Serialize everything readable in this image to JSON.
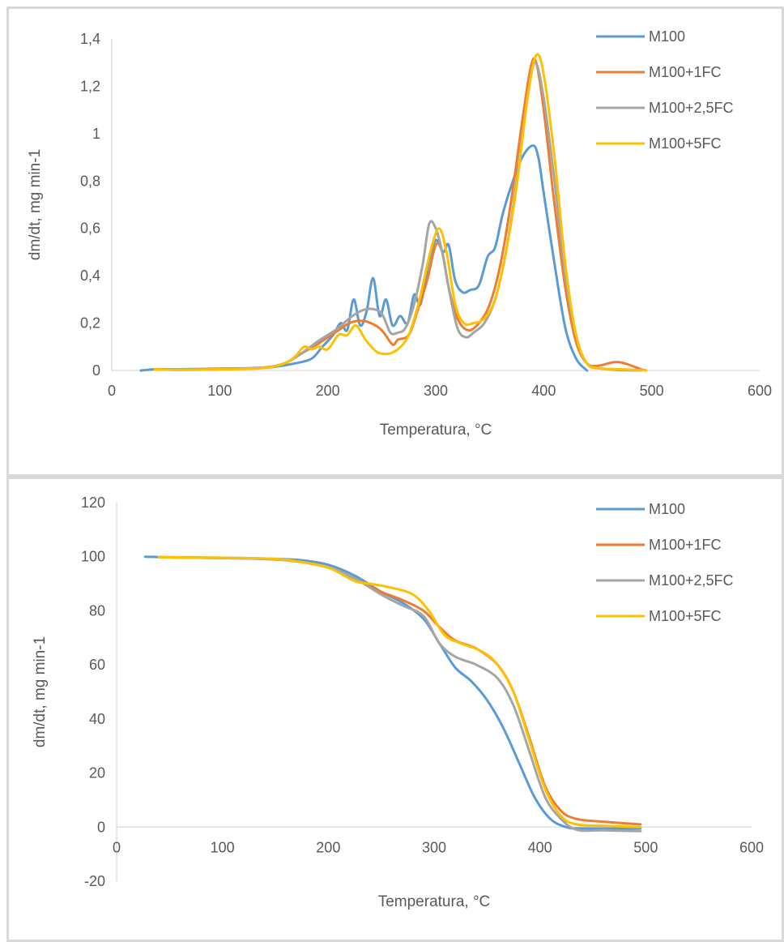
{
  "chart_data": [
    {
      "type": "line",
      "xlabel": "Temperatura, °C",
      "ylabel": "dm/dt, mg min-1",
      "xlim": [
        0,
        600
      ],
      "ylim": [
        0,
        1.4
      ],
      "xticks": [
        "0",
        "100",
        "200",
        "300",
        "400",
        "500",
        "600"
      ],
      "yticks": [
        "0",
        "0,2",
        "0,4",
        "0,6",
        "0,8",
        "1",
        "1,2",
        "1,4"
      ],
      "grid": false,
      "legend_position": "top-right",
      "series": [
        {
          "name": "M100",
          "color": "#5b9bd5",
          "points": [
            [
              27,
              0
            ],
            [
              40,
              0.005
            ],
            [
              60,
              0.005
            ],
            [
              100,
              0.008
            ],
            [
              130,
              0.01
            ],
            [
              150,
              0.015
            ],
            [
              170,
              0.03
            ],
            [
              185,
              0.05
            ],
            [
              195,
              0.1
            ],
            [
              205,
              0.15
            ],
            [
              212,
              0.2
            ],
            [
              218,
              0.17
            ],
            [
              224,
              0.3
            ],
            [
              230,
              0.19
            ],
            [
              236,
              0.25
            ],
            [
              242,
              0.39
            ],
            [
              248,
              0.23
            ],
            [
              254,
              0.3
            ],
            [
              260,
              0.19
            ],
            [
              267,
              0.23
            ],
            [
              274,
              0.2
            ],
            [
              280,
              0.32
            ],
            [
              286,
              0.28
            ],
            [
              293,
              0.45
            ],
            [
              300,
              0.55
            ],
            [
              307,
              0.5
            ],
            [
              312,
              0.53
            ],
            [
              318,
              0.38
            ],
            [
              325,
              0.33
            ],
            [
              332,
              0.34
            ],
            [
              340,
              0.36
            ],
            [
              348,
              0.48
            ],
            [
              355,
              0.52
            ],
            [
              362,
              0.66
            ],
            [
              370,
              0.78
            ],
            [
              380,
              0.9
            ],
            [
              390,
              0.95
            ],
            [
              395,
              0.9
            ],
            [
              400,
              0.75
            ],
            [
              410,
              0.45
            ],
            [
              420,
              0.18
            ],
            [
              430,
              0.05
            ],
            [
              440,
              0
            ]
          ]
        },
        {
          "name": "M100+1FC",
          "color": "#ed7d31",
          "points": [
            [
              40,
              0.005
            ],
            [
              60,
              0.003
            ],
            [
              100,
              0.005
            ],
            [
              140,
              0.012
            ],
            [
              160,
              0.03
            ],
            [
              175,
              0.07
            ],
            [
              190,
              0.11
            ],
            [
              200,
              0.14
            ],
            [
              210,
              0.17
            ],
            [
              220,
              0.2
            ],
            [
              230,
              0.21
            ],
            [
              240,
              0.2
            ],
            [
              250,
              0.17
            ],
            [
              260,
              0.11
            ],
            [
              265,
              0.13
            ],
            [
              275,
              0.15
            ],
            [
              283,
              0.25
            ],
            [
              292,
              0.38
            ],
            [
              300,
              0.53
            ],
            [
              306,
              0.5
            ],
            [
              312,
              0.35
            ],
            [
              320,
              0.22
            ],
            [
              330,
              0.17
            ],
            [
              340,
              0.2
            ],
            [
              350,
              0.28
            ],
            [
              360,
              0.45
            ],
            [
              370,
              0.72
            ],
            [
              380,
              1.05
            ],
            [
              388,
              1.28
            ],
            [
              393,
              1.3
            ],
            [
              400,
              1.1
            ],
            [
              410,
              0.7
            ],
            [
              420,
              0.35
            ],
            [
              430,
              0.12
            ],
            [
              440,
              0.03
            ],
            [
              450,
              0.02
            ],
            [
              465,
              0.035
            ],
            [
              475,
              0.03
            ],
            [
              490,
              0.005
            ],
            [
              495,
              0
            ]
          ]
        },
        {
          "name": "M100+2,5FC",
          "color": "#a5a5a5",
          "points": [
            [
              40,
              0.005
            ],
            [
              60,
              0.003
            ],
            [
              100,
              0.005
            ],
            [
              140,
              0.012
            ],
            [
              160,
              0.03
            ],
            [
              175,
              0.07
            ],
            [
              190,
              0.12
            ],
            [
              200,
              0.15
            ],
            [
              210,
              0.18
            ],
            [
              220,
              0.22
            ],
            [
              230,
              0.25
            ],
            [
              240,
              0.26
            ],
            [
              250,
              0.24
            ],
            [
              258,
              0.16
            ],
            [
              265,
              0.16
            ],
            [
              272,
              0.18
            ],
            [
              280,
              0.28
            ],
            [
              288,
              0.45
            ],
            [
              294,
              0.62
            ],
            [
              300,
              0.6
            ],
            [
              306,
              0.5
            ],
            [
              312,
              0.35
            ],
            [
              320,
              0.18
            ],
            [
              328,
              0.14
            ],
            [
              335,
              0.16
            ],
            [
              345,
              0.2
            ],
            [
              355,
              0.3
            ],
            [
              365,
              0.5
            ],
            [
              375,
              0.8
            ],
            [
              385,
              1.15
            ],
            [
              392,
              1.3
            ],
            [
              400,
              1.15
            ],
            [
              410,
              0.8
            ],
            [
              420,
              0.4
            ],
            [
              430,
              0.15
            ],
            [
              440,
              0.03
            ],
            [
              460,
              0.005
            ],
            [
              490,
              0
            ]
          ]
        },
        {
          "name": "M100+5FC",
          "color": "#ffc000",
          "points": [
            [
              40,
              0.005
            ],
            [
              60,
              0.003
            ],
            [
              100,
              0.005
            ],
            [
              140,
              0.01
            ],
            [
              160,
              0.03
            ],
            [
              170,
              0.06
            ],
            [
              178,
              0.1
            ],
            [
              185,
              0.09
            ],
            [
              192,
              0.1
            ],
            [
              200,
              0.09
            ],
            [
              210,
              0.15
            ],
            [
              218,
              0.15
            ],
            [
              226,
              0.19
            ],
            [
              235,
              0.13
            ],
            [
              245,
              0.08
            ],
            [
              255,
              0.07
            ],
            [
              265,
              0.09
            ],
            [
              275,
              0.15
            ],
            [
              285,
              0.3
            ],
            [
              295,
              0.5
            ],
            [
              303,
              0.6
            ],
            [
              310,
              0.5
            ],
            [
              318,
              0.28
            ],
            [
              326,
              0.2
            ],
            [
              335,
              0.2
            ],
            [
              345,
              0.22
            ],
            [
              355,
              0.3
            ],
            [
              365,
              0.5
            ],
            [
              375,
              0.78
            ],
            [
              385,
              1.15
            ],
            [
              393,
              1.33
            ],
            [
              400,
              1.25
            ],
            [
              410,
              0.9
            ],
            [
              420,
              0.45
            ],
            [
              430,
              0.15
            ],
            [
              440,
              0.03
            ],
            [
              450,
              0.01
            ],
            [
              470,
              0.005
            ],
            [
              495,
              0
            ]
          ]
        }
      ]
    },
    {
      "type": "line",
      "xlabel": "Temperatura, °C",
      "ylabel": "dm/dt, mg min-1",
      "xlim": [
        0,
        600
      ],
      "ylim": [
        -20,
        120
      ],
      "xticks": [
        "0",
        "100",
        "200",
        "300",
        "400",
        "500",
        "600"
      ],
      "yticks": [
        "-20",
        "0",
        "20",
        "40",
        "60",
        "80",
        "100",
        "120"
      ],
      "grid": false,
      "legend_position": "top-right",
      "series": [
        {
          "name": "M100",
          "color": "#5b9bd5",
          "points": [
            [
              27,
              100
            ],
            [
              50,
              99.8
            ],
            [
              100,
              99.6
            ],
            [
              150,
              99.2
            ],
            [
              175,
              98.7
            ],
            [
              200,
              97
            ],
            [
              225,
              93
            ],
            [
              250,
              87
            ],
            [
              270,
              83
            ],
            [
              290,
              77
            ],
            [
              305,
              68
            ],
            [
              320,
              59
            ],
            [
              335,
              54
            ],
            [
              350,
              47
            ],
            [
              365,
              37
            ],
            [
              380,
              24
            ],
            [
              395,
              11
            ],
            [
              410,
              3
            ],
            [
              425,
              0
            ],
            [
              440,
              -0.5
            ],
            [
              495,
              -0.5
            ]
          ]
        },
        {
          "name": "M100+1FC",
          "color": "#ed7d31",
          "points": [
            [
              40,
              99.8
            ],
            [
              100,
              99.5
            ],
            [
              150,
              99
            ],
            [
              175,
              98
            ],
            [
              200,
              96
            ],
            [
              225,
              92
            ],
            [
              250,
              87
            ],
            [
              270,
              84
            ],
            [
              290,
              80
            ],
            [
              305,
              74
            ],
            [
              320,
              69
            ],
            [
              340,
              66
            ],
            [
              360,
              60
            ],
            [
              375,
              50
            ],
            [
              390,
              33
            ],
            [
              405,
              15
            ],
            [
              420,
              6
            ],
            [
              435,
              3
            ],
            [
              460,
              2
            ],
            [
              495,
              1
            ]
          ]
        },
        {
          "name": "M100+2,5FC",
          "color": "#a5a5a5",
          "points": [
            [
              40,
              99.8
            ],
            [
              100,
              99.5
            ],
            [
              150,
              99
            ],
            [
              175,
              98
            ],
            [
              200,
              96
            ],
            [
              225,
              92
            ],
            [
              250,
              86
            ],
            [
              270,
              82
            ],
            [
              290,
              78
            ],
            [
              305,
              68
            ],
            [
              320,
              63
            ],
            [
              340,
              60
            ],
            [
              360,
              55
            ],
            [
              375,
              45
            ],
            [
              390,
              28
            ],
            [
              405,
              11
            ],
            [
              420,
              3
            ],
            [
              435,
              -1
            ],
            [
              460,
              -1.2
            ],
            [
              495,
              -1.5
            ]
          ]
        },
        {
          "name": "M100+5FC",
          "color": "#ffc000",
          "points": [
            [
              40,
              99.8
            ],
            [
              100,
              99.6
            ],
            [
              150,
              99.2
            ],
            [
              175,
              98
            ],
            [
              200,
              96
            ],
            [
              225,
              91
            ],
            [
              240,
              90
            ],
            [
              260,
              88.5
            ],
            [
              280,
              86
            ],
            [
              295,
              80
            ],
            [
              310,
              71
            ],
            [
              325,
              68
            ],
            [
              345,
              65
            ],
            [
              360,
              60
            ],
            [
              375,
              50
            ],
            [
              390,
              32
            ],
            [
              405,
              14
            ],
            [
              420,
              4
            ],
            [
              435,
              1
            ],
            [
              460,
              0.5
            ],
            [
              495,
              0
            ]
          ]
        }
      ]
    }
  ]
}
